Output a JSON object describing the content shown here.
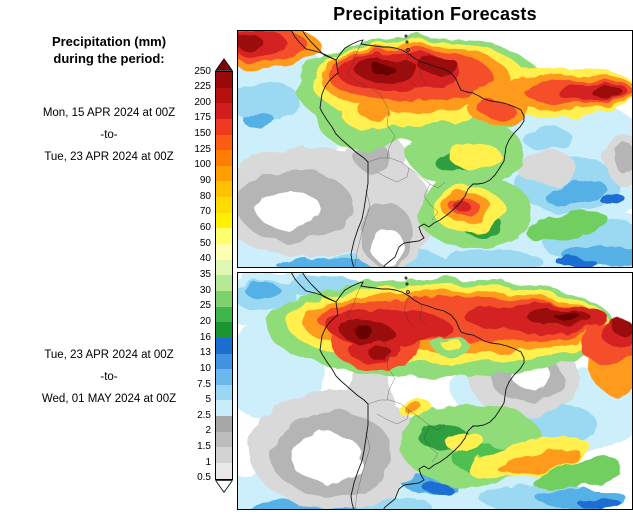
{
  "title": "Precipitation Forecasts",
  "legend": {
    "title_line1": "Precipitation (mm)",
    "title_line2": "during the period:"
  },
  "periods": [
    {
      "start": "Mon, 15 APR 2024 at 00Z",
      "separator": "-to-",
      "end": "Tue, 23 APR 2024 at 00Z"
    },
    {
      "start": "Tue, 23 APR 2024 at 00Z",
      "separator": "-to-",
      "end": "Wed, 01 MAY 2024 at 00Z"
    }
  ],
  "colorbar": {
    "units": "mm",
    "levels": [
      "250",
      "225",
      "200",
      "175",
      "150",
      "125",
      "100",
      "90",
      "80",
      "70",
      "60",
      "50",
      "40",
      "35",
      "30",
      "25",
      "20",
      "16",
      "13",
      "10",
      "7.5",
      "5",
      "2.5",
      "2",
      "1.5",
      "1",
      "0.5"
    ],
    "segment_colors": [
      "#9b0a0a",
      "#b61111",
      "#d31c1c",
      "#ee3a20",
      "#fb5c12",
      "#ff7d00",
      "#ff9e00",
      "#ffc000",
      "#ffdc00",
      "#fff200",
      "#ffff6e",
      "#ffffb4",
      "#e1f7b4",
      "#b6e995",
      "#7dd26b",
      "#3fb44a",
      "#1b9431",
      "#1e6ed2",
      "#4193e0",
      "#6cb8ec",
      "#99d5f4",
      "#c9ecfa",
      "#a6a6a6",
      "#bcbcbc",
      "#d2d2d2",
      "#e8e8e8"
    ],
    "arrow_top_color": "#7c0508",
    "arrow_bottom_color": "#ffffff"
  }
}
